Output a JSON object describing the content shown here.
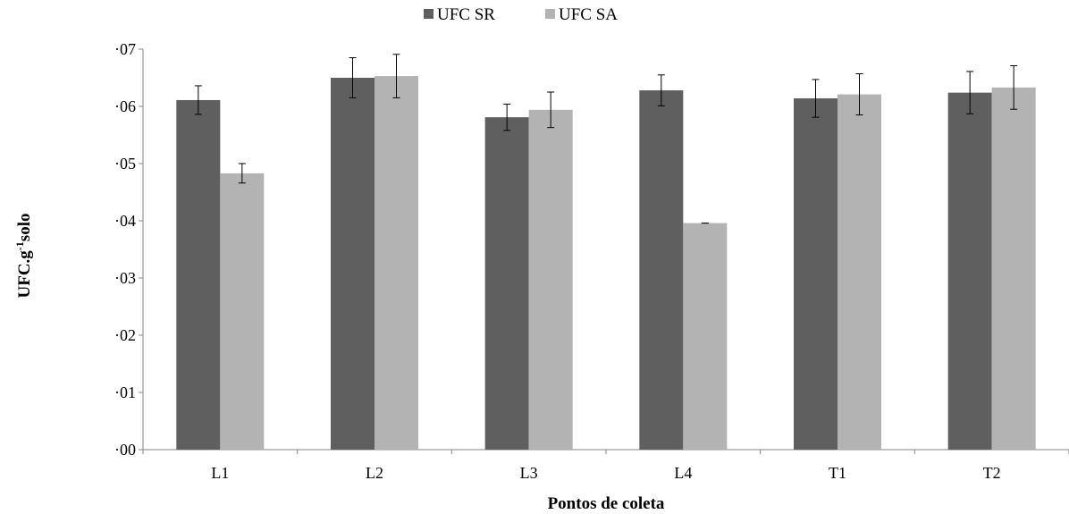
{
  "chart_data": {
    "type": "bar",
    "categories": [
      "L1",
      "L2",
      "L3",
      "L4",
      "T1",
      "T2"
    ],
    "series": [
      {
        "name": "UFC SR",
        "color": "#5f5f5f",
        "values": [
          6.11,
          6.5,
          5.81,
          6.28,
          6.14,
          6.24
        ],
        "errors": [
          0.25,
          0.35,
          0.23,
          0.27,
          0.33,
          0.37
        ]
      },
      {
        "name": "UFC SA",
        "color": "#b3b3b3",
        "values": [
          4.83,
          6.53,
          5.94,
          3.96,
          6.21,
          6.33
        ],
        "errors": [
          0.17,
          0.38,
          0.31,
          0.0,
          0.36,
          0.38
        ]
      }
    ],
    "ylim": [
      0,
      7
    ],
    "yticks": [
      "·00",
      "·01",
      "·02",
      "·03",
      "·04",
      "·05",
      "·06",
      "·07"
    ],
    "xlabel": "Pontos de coleta",
    "ylabel_main": "UFC.g",
    "ylabel_sup": "-1",
    "ylabel_tail": "solo",
    "legend_position": "top-center",
    "grid": false
  }
}
